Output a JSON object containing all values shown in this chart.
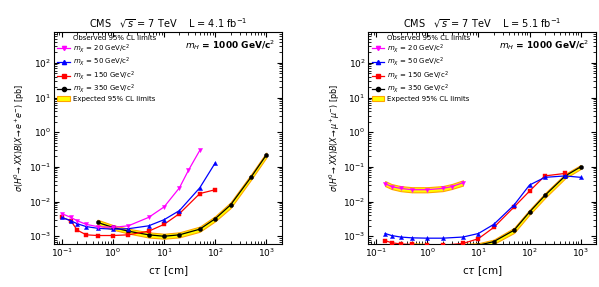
{
  "left": {
    "title": "CMS   $\\sqrt{s}$ = 7 TeV    L = 4.1 fb$^{-1}$",
    "ylabel": "$\\sigma(H^{0}\\!\\to XX)B(X\\!\\to e^{+}e^{-})$ [pb]",
    "xlabel": "c$\\tau$ [cm]",
    "mH_label": "$m_{H}$ = 1000 GeV/c$^{2}$",
    "ylim": [
      0.0006,
      800.0
    ],
    "xlim": [
      0.07,
      2000
    ],
    "mx20_x": [
      0.1,
      0.15,
      0.2,
      0.3,
      0.5,
      1.0,
      2.0,
      5.0,
      10.0,
      20.0,
      30.0,
      50.0
    ],
    "mx20_y": [
      0.0045,
      0.0035,
      0.0028,
      0.0022,
      0.0019,
      0.0018,
      0.002,
      0.0035,
      0.007,
      0.025,
      0.08,
      0.3
    ],
    "mx50_x": [
      0.1,
      0.15,
      0.2,
      0.3,
      0.5,
      1.0,
      2.0,
      5.0,
      10.0,
      20.0,
      50.0,
      100.0
    ],
    "mx50_y": [
      0.0035,
      0.0028,
      0.0023,
      0.0019,
      0.0017,
      0.0016,
      0.00165,
      0.002,
      0.003,
      0.0055,
      0.025,
      0.13
    ],
    "mx150_x": [
      0.1,
      0.15,
      0.2,
      0.3,
      0.5,
      1.0,
      2.0,
      5.0,
      10.0,
      20.0,
      50.0,
      100.0
    ],
    "mx150_y": [
      0.0035,
      0.0028,
      0.0015,
      0.0011,
      0.00105,
      0.00105,
      0.0011,
      0.0014,
      0.0022,
      0.0045,
      0.017,
      0.022
    ],
    "mx350_x": [
      0.5,
      1.0,
      2.0,
      5.0,
      10.0,
      20.0,
      50.0,
      100.0,
      200.0,
      500.0,
      1000.0
    ],
    "mx350_y": [
      0.0025,
      0.0018,
      0.0014,
      0.0011,
      0.001,
      0.0011,
      0.0016,
      0.0032,
      0.008,
      0.05,
      0.22
    ],
    "exp_x": [
      0.5,
      1.0,
      2.0,
      5.0,
      10.0,
      20.0,
      50.0,
      100.0,
      200.0,
      500.0,
      1000.0
    ],
    "exp_y": [
      0.0025,
      0.0018,
      0.0014,
      0.0011,
      0.001,
      0.0011,
      0.0016,
      0.0032,
      0.008,
      0.05,
      0.22
    ],
    "exp_ylo": [
      0.0021,
      0.00155,
      0.0012,
      0.00092,
      0.00085,
      0.00093,
      0.00135,
      0.0027,
      0.0065,
      0.042,
      0.185
    ],
    "exp_yhi": [
      0.003,
      0.0021,
      0.00165,
      0.0013,
      0.00118,
      0.0013,
      0.0019,
      0.0038,
      0.0095,
      0.06,
      0.26
    ]
  },
  "right": {
    "title": "CMS   $\\sqrt{s}$ = 7 TeV    L = 5.1 fb$^{-1}$",
    "ylabel": "$\\sigma(H^{0}\\!\\to XX)B(X\\!\\to \\mu^{+}\\mu^{-})$ [pb]",
    "xlabel": "c$\\tau$ [cm]",
    "mH_label": "$m_{H}$ = 1000 GeV/c$^{2}$",
    "ylim": [
      0.0006,
      800.0
    ],
    "xlim": [
      0.07,
      2000
    ],
    "mx20_x": [
      0.15,
      0.2,
      0.3,
      0.5,
      1.0,
      2.0,
      3.0,
      5.0
    ],
    "mx20_y": [
      0.033,
      0.027,
      0.024,
      0.022,
      0.022,
      0.024,
      0.027,
      0.035
    ],
    "mx20_exp_x": [
      0.15,
      0.2,
      0.3,
      0.5,
      1.0,
      2.0,
      3.0,
      5.0
    ],
    "mx20_exp_y": [
      0.033,
      0.027,
      0.024,
      0.022,
      0.022,
      0.024,
      0.027,
      0.035
    ],
    "mx20_exp_ylo": [
      0.028,
      0.023,
      0.02,
      0.0185,
      0.0185,
      0.02,
      0.023,
      0.029
    ],
    "mx20_exp_yhi": [
      0.039,
      0.032,
      0.028,
      0.026,
      0.026,
      0.028,
      0.032,
      0.041
    ],
    "mx50_x": [
      0.15,
      0.2,
      0.3,
      0.5,
      1.0,
      2.0,
      5.0,
      10.0,
      20.0,
      50.0,
      100.0,
      200.0,
      500.0,
      1000.0
    ],
    "mx50_y": [
      0.0012,
      0.00105,
      0.00095,
      0.0009,
      0.00088,
      0.00088,
      0.00095,
      0.0012,
      0.0022,
      0.008,
      0.03,
      0.05,
      0.055,
      0.05
    ],
    "mx150_x": [
      0.15,
      0.2,
      0.3,
      0.5,
      1.0,
      2.0,
      5.0,
      10.0,
      20.0,
      50.0,
      100.0,
      200.0,
      500.0
    ],
    "mx150_y": [
      0.00075,
      0.00065,
      0.0006,
      0.00058,
      0.00055,
      0.00055,
      0.00062,
      0.00085,
      0.0018,
      0.007,
      0.02,
      0.055,
      0.065
    ],
    "mx350_x": [
      0.5,
      1.0,
      2.0,
      5.0,
      10.0,
      20.0,
      50.0,
      100.0,
      200.0,
      500.0,
      1000.0
    ],
    "mx350_y": [
      0.00055,
      0.00052,
      0.0005,
      0.00052,
      0.00055,
      0.0007,
      0.0015,
      0.005,
      0.015,
      0.055,
      0.1
    ],
    "exp_x": [
      0.5,
      1.0,
      2.0,
      5.0,
      10.0,
      20.0,
      50.0,
      100.0,
      200.0,
      500.0,
      1000.0
    ],
    "exp_y": [
      0.00055,
      0.00052,
      0.0005,
      0.00052,
      0.00055,
      0.0007,
      0.0015,
      0.005,
      0.015,
      0.055,
      0.1
    ],
    "exp_ylo": [
      0.00047,
      0.00044,
      0.00042,
      0.00044,
      0.00047,
      0.0006,
      0.00125,
      0.0042,
      0.0126,
      0.047,
      0.087
    ],
    "exp_yhi": [
      0.00063,
      0.0006,
      0.00058,
      0.0006,
      0.00063,
      0.0008,
      0.00175,
      0.0058,
      0.0174,
      0.063,
      0.113
    ]
  },
  "colors": {
    "mx20": "#ff00ff",
    "mx50": "#0000ff",
    "mx150": "#ff0000",
    "mx350": "#000000",
    "expected_fill": "#ffff00",
    "expected_edge": "#ffa500"
  },
  "legend_labels": {
    "observed": "Observed 95% CL limits",
    "mx20": "$m_{X}$ = 20 GeV/c$^{2}$",
    "mx50": "$m_{X}$ = 50 GeV/c$^{2}$",
    "mx150": "$m_{X}$ = 150 GeV/c$^{2}$",
    "mx350": "$m_{X}$ = 350 GeV/c$^{2}$",
    "expected": "Expected 95% CL limits"
  }
}
